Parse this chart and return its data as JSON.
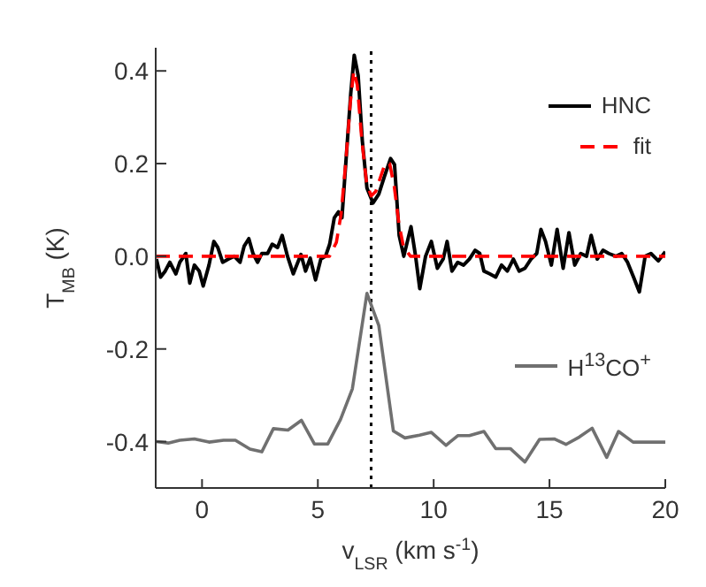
{
  "chart_data": {
    "type": "line",
    "xlabel": "v$_{LSR}$ (km s$^{-1}$)",
    "ylabel": "T$_{MB}$ (K)",
    "xlim": [
      -2,
      20
    ],
    "ylim": [
      -0.5,
      0.45
    ],
    "xticks": [
      0,
      5,
      10,
      15,
      20
    ],
    "yticks": [
      -0.4,
      -0.2,
      {
        "value": 0,
        "label": "0.0"
      },
      0.2,
      0.4
    ],
    "legend": "right",
    "ref_lines": [
      {
        "axis": "x",
        "value": 7.3,
        "color": "#000000",
        "line_style": "dotted"
      }
    ],
    "series": [
      {
        "name": "HNC",
        "color": "#000000",
        "line_style": "solid",
        "x": [
          -1.97,
          -1.79,
          -1.59,
          -1.39,
          -1.13,
          -0.96,
          -0.7,
          -0.53,
          -0.33,
          -0.12,
          0.05,
          0.3,
          0.51,
          0.68,
          0.89,
          1.14,
          1.39,
          1.64,
          1.82,
          2.02,
          2.2,
          2.4,
          2.58,
          2.83,
          3.03,
          3.26,
          3.46,
          3.69,
          3.94,
          4.09,
          4.27,
          4.47,
          4.67,
          4.9,
          5.13,
          5.33,
          5.51,
          5.71,
          5.89,
          6.04,
          6.24,
          6.42,
          6.57,
          6.74,
          6.92,
          7.12,
          7.38,
          7.63,
          7.88,
          8.14,
          8.31,
          8.51,
          8.71,
          9.02,
          9.22,
          9.4,
          9.65,
          9.9,
          10.16,
          10.41,
          10.58,
          10.79,
          11.04,
          11.29,
          11.54,
          11.79,
          11.99,
          12.17,
          12.42,
          12.68,
          12.93,
          13.18,
          13.44,
          13.69,
          13.94,
          14.2,
          14.45,
          14.63,
          14.83,
          15.08,
          15.33,
          15.59,
          15.84,
          16.09,
          16.35,
          16.6,
          16.8,
          17.06,
          17.31,
          17.56,
          17.87,
          18.12,
          18.37,
          18.63,
          18.88,
          19.13,
          19.38,
          19.7,
          20.0
        ],
        "values": [
          -0.006,
          -0.045,
          -0.032,
          -0.013,
          -0.038,
          -0.013,
          0.006,
          -0.058,
          -0.019,
          -0.032,
          -0.064,
          -0.019,
          0.032,
          0.019,
          -0.013,
          -0.006,
          0,
          -0.013,
          0.022,
          0.038,
          0.006,
          -0.013,
          0.006,
          0.006,
          0.026,
          0.019,
          0.045,
          0,
          -0.038,
          -0.019,
          0.004,
          -0.032,
          -0.004,
          -0.051,
          -0.006,
          0,
          0.026,
          0.083,
          0.096,
          0.083,
          0.224,
          0.351,
          0.434,
          0.39,
          0.249,
          0.147,
          0.115,
          0.134,
          0.173,
          0.211,
          0.198,
          0.045,
          0,
          0.064,
          0,
          -0.07,
          0,
          0.032,
          -0.026,
          -0.006,
          0.032,
          -0.032,
          -0.013,
          -0.019,
          -0.006,
          0.013,
          0.006,
          -0.032,
          -0.038,
          -0.045,
          -0.019,
          -0.032,
          -0.006,
          -0.032,
          -0.026,
          -0.006,
          0.006,
          0.058,
          0.032,
          -0.019,
          0.058,
          -0.026,
          0.051,
          -0.019,
          0.006,
          0,
          0.045,
          -0.006,
          0.013,
          0.006,
          0,
          0.006,
          -0.013,
          -0.045,
          -0.077,
          0,
          0.006,
          -0.01,
          0.01
        ]
      },
      {
        "name": "fit",
        "color": "#ff0000",
        "line_style": "dashed",
        "x": [
          -2,
          5.5,
          5.8,
          6.0,
          6.2,
          6.4,
          6.55,
          6.7,
          6.9,
          7.1,
          7.3,
          7.5,
          7.7,
          7.9,
          8.1,
          8.3,
          8.5,
          8.7,
          9.0,
          20
        ],
        "values": [
          0,
          0,
          0.03,
          0.09,
          0.2,
          0.33,
          0.4,
          0.37,
          0.25,
          0.16,
          0.13,
          0.14,
          0.17,
          0.2,
          0.2,
          0.15,
          0.07,
          0.02,
          0,
          0
        ]
      },
      {
        "name": "H$^{13}$CO$^{+}$",
        "color": "#707070",
        "line_style": "solid",
        "x": [
          -1.97,
          -1.46,
          -0.96,
          -0.33,
          0.3,
          0.93,
          1.44,
          2.07,
          2.58,
          3.08,
          3.71,
          4.29,
          4.85,
          5.43,
          5.98,
          6.49,
          7.12,
          7.63,
          8.26,
          8.76,
          9.39,
          9.9,
          10.53,
          11.04,
          11.54,
          12.17,
          12.68,
          13.31,
          13.94,
          14.57,
          15.2,
          15.71,
          16.29,
          16.84,
          17.47,
          17.98,
          18.61,
          19.37,
          20.0
        ],
        "values": [
          -0.4,
          -0.403,
          -0.397,
          -0.394,
          -0.401,
          -0.397,
          -0.397,
          -0.416,
          -0.422,
          -0.372,
          -0.375,
          -0.354,
          -0.405,
          -0.405,
          -0.352,
          -0.286,
          -0.08,
          -0.149,
          -0.377,
          -0.392,
          -0.386,
          -0.38,
          -0.408,
          -0.387,
          -0.387,
          -0.378,
          -0.415,
          -0.415,
          -0.444,
          -0.395,
          -0.394,
          -0.406,
          -0.39,
          -0.371,
          -0.434,
          -0.378,
          -0.401,
          -0.401,
          -0.401
        ]
      }
    ]
  }
}
